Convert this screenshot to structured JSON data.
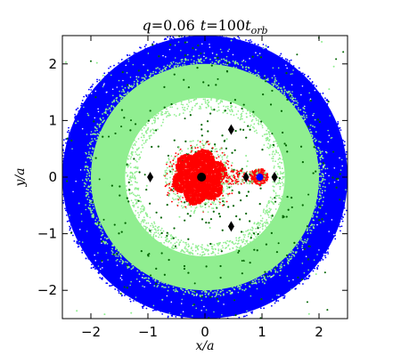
{
  "chart_data": {
    "type": "scatter",
    "title": {
      "q_part": "q",
      "q_eq": "=",
      "q_value": "0.06",
      "t_part": "t",
      "t_eq": "=",
      "t_value": "100",
      "t_unit": "t",
      "t_unit_sub": "orb"
    },
    "xlabel": "x/a",
    "ylabel": "y/a",
    "xlim": [
      -2.5,
      2.5
    ],
    "ylim": [
      -2.5,
      2.5
    ],
    "xticks": [
      -2,
      -1,
      0,
      1,
      2
    ],
    "yticks": [
      -2,
      -1,
      0,
      1,
      2
    ],
    "xtick_labels": [
      "−2",
      "−1",
      "0",
      "1",
      "2"
    ],
    "ytick_labels": [
      "−2",
      "−1",
      "0",
      "1",
      "2"
    ],
    "grid": false,
    "legend": "none",
    "series": [
      {
        "kind": "outer-disk-ring",
        "color": "#0000ff",
        "r_inner": 1.8,
        "r_outer": 2.5
      },
      {
        "kind": "inner-disk-ring",
        "color": "#90ee90",
        "r_inner": 1.25,
        "r_outer": 2.05
      },
      {
        "kind": "scattered-particles",
        "color": "#006400"
      },
      {
        "kind": "primary-disk",
        "color": "#ff0000",
        "center": [
          -0.1,
          0.0
        ],
        "r_outer": 0.45
      },
      {
        "kind": "secondary-disk",
        "color": "#ff0000",
        "center": [
          0.96,
          0.0
        ],
        "r_outer": 0.15
      }
    ],
    "primary_star": {
      "x": -0.06,
      "y": 0.0,
      "color": "#000000"
    },
    "secondary_star": {
      "x": 0.96,
      "y": 0.0,
      "color": "#0000ff"
    },
    "lagrange_points": [
      {
        "x": -0.96,
        "y": 0.0
      },
      {
        "x": 0.72,
        "y": 0.0
      },
      {
        "x": 1.22,
        "y": 0.0
      },
      {
        "x": 0.46,
        "y": 0.84
      },
      {
        "x": 0.46,
        "y": -0.87
      }
    ]
  }
}
